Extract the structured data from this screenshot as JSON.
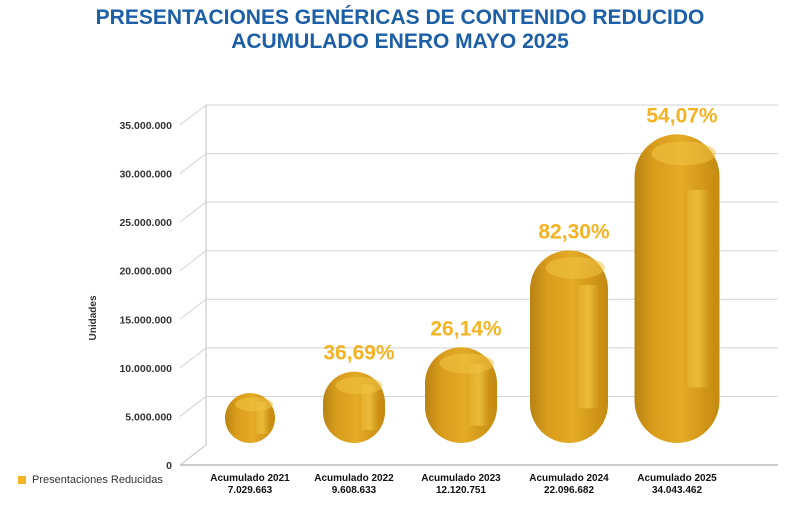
{
  "header": {
    "title_line1": "PRESENTACIONES GENÉRICAS DE CONTENIDO REDUCIDO",
    "title_line2": "ACUMULADO ENERO MAYO 2025"
  },
  "legend": {
    "label": "Presentaciones Reducidas"
  },
  "chart_data": {
    "type": "bar",
    "title": "PRESENTACIONES GENÉRICAS DE CONTENIDO REDUCIDO ACUMULADO ENERO MAYO 2025",
    "xlabel": "",
    "ylabel": "Unidades",
    "ylim": [
      0,
      35000000
    ],
    "yticks": [
      "0",
      "5.000.000",
      "10.000.000",
      "15.000.000",
      "20.000.000",
      "25.000.000",
      "30.000.000",
      "35.000.000"
    ],
    "categories": [
      "Acumulado 2021",
      "Acumulado 2022",
      "Acumulado 2023",
      "Acumulado 2024",
      "Acumulado 2025"
    ],
    "value_labels": [
      "7.029.663",
      "9.608.633",
      "12.120.751",
      "22.096.682",
      "34.043.462"
    ],
    "series": [
      {
        "name": "Presentaciones Reducidas",
        "values": [
          7029663,
          9608633,
          12120751,
          22096682,
          34043462
        ]
      }
    ],
    "annotations": [
      "",
      "36,69%",
      "26,14%",
      "82,30%",
      "54,07%"
    ],
    "bar_color": "#e1a41f",
    "grid": true,
    "legend_position": "bottom-left"
  }
}
